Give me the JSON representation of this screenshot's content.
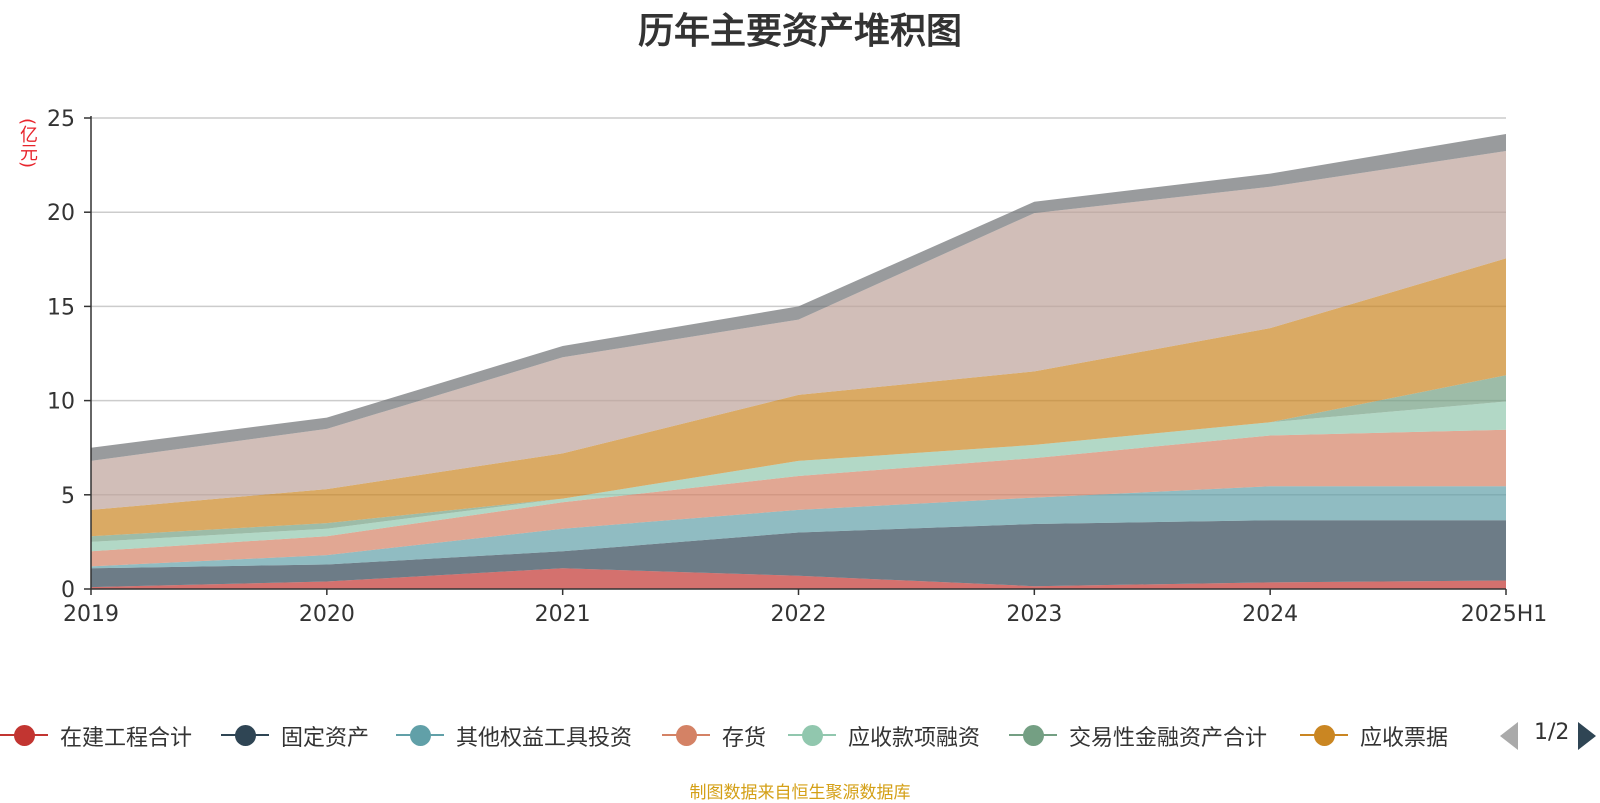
{
  "title": "历年主要资产堆积图",
  "source_note": "制图数据来自恒生聚源数据库",
  "legend_page": "1/2",
  "chart_data": {
    "type": "area",
    "stacked": true,
    "title": "历年主要资产堆积图",
    "ylabel": "(亿元)",
    "xlabel": "",
    "categories": [
      "2019",
      "2020",
      "2021",
      "2022",
      "2023",
      "2024",
      "2025H1"
    ],
    "ylim": [
      0,
      25
    ],
    "yticks": [
      0,
      5,
      10,
      15,
      20,
      25
    ],
    "grid": true,
    "legend_position": "bottom",
    "series": [
      {
        "name": "在建工程合计",
        "color": "#c23531",
        "values": [
          0.1,
          0.4,
          1.1,
          0.7,
          0.15,
          0.35,
          0.45
        ],
        "in_legend": true
      },
      {
        "name": "固定资产",
        "color": "#2f4554",
        "values": [
          1.0,
          0.9,
          0.9,
          2.3,
          3.3,
          3.3,
          3.2
        ],
        "in_legend": true
      },
      {
        "name": "其他权益工具投资",
        "color": "#61a0a8",
        "values": [
          0.1,
          0.5,
          1.2,
          1.2,
          1.4,
          1.8,
          1.8
        ],
        "in_legend": true
      },
      {
        "name": "存货",
        "color": "#d48265",
        "values": [
          0.8,
          1.0,
          1.4,
          1.8,
          2.1,
          2.7,
          3.0
        ],
        "in_legend": true
      },
      {
        "name": "应收款项融资",
        "color": "#91c7ae",
        "values": [
          0.5,
          0.4,
          0.2,
          0.8,
          0.7,
          0.7,
          1.5
        ],
        "in_legend": true
      },
      {
        "name": "交易性金融资产合计",
        "color": "#749f83",
        "values": [
          0.3,
          0.3,
          0.0,
          0.0,
          0.0,
          0.0,
          1.4
        ],
        "in_legend": true
      },
      {
        "name": "应收票据",
        "color": "#ca8622",
        "values": [
          1.4,
          1.8,
          2.4,
          3.5,
          3.9,
          5.0,
          6.2
        ],
        "in_legend": true
      },
      {
        "name": "",
        "color": "#bda29a",
        "values": [
          2.6,
          3.2,
          5.1,
          4.0,
          8.4,
          7.5,
          5.7
        ],
        "in_legend": false
      },
      {
        "name": "",
        "color": "#6e7074",
        "values": [
          0.7,
          0.6,
          0.6,
          0.7,
          0.6,
          0.7,
          0.9
        ],
        "in_legend": false
      }
    ]
  }
}
